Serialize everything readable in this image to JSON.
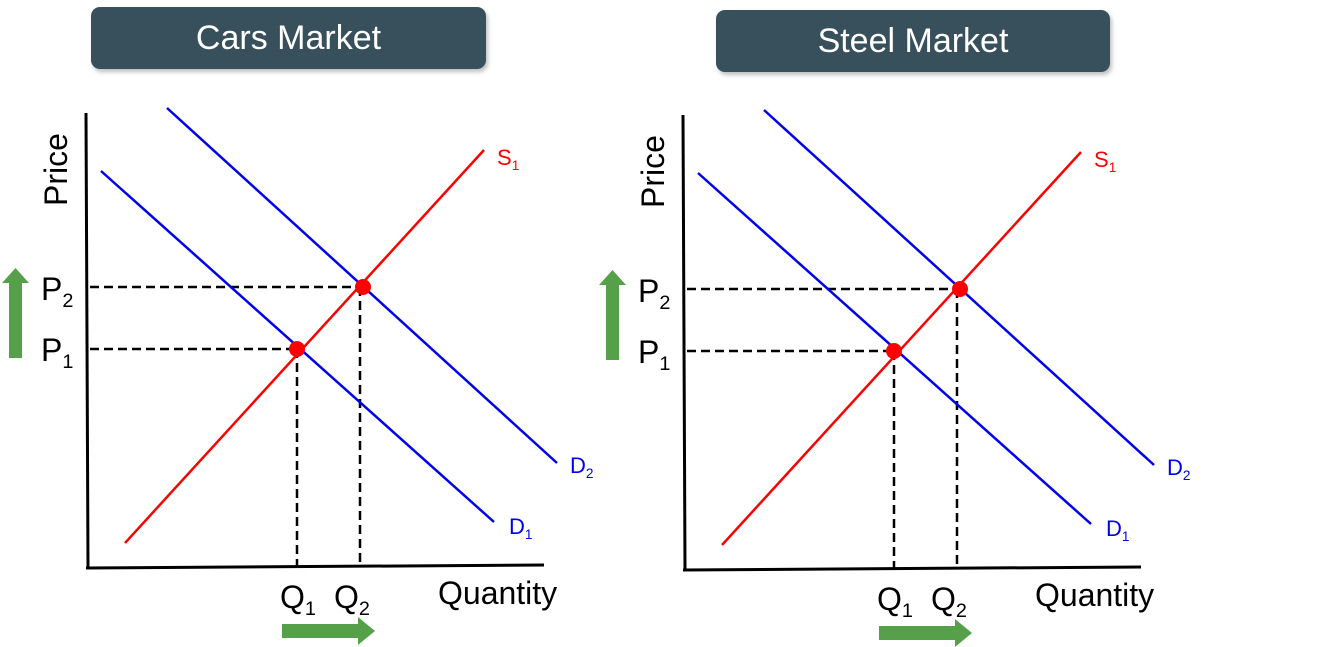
{
  "colors": {
    "title_bg": "#37505c",
    "demand": "#0000ee",
    "supply": "#ff0000",
    "equilibrium": "#ff0000",
    "arrow": "#56a04a",
    "axis": "#000000"
  },
  "panels": [
    {
      "title": "Cars Market",
      "y_label": "Price",
      "x_label": "Quantity",
      "supply_label": "S",
      "supply_sub": "1",
      "demand_labels": [
        {
          "main": "D",
          "sub": "1"
        },
        {
          "main": "D",
          "sub": "2"
        }
      ],
      "price_labels": [
        {
          "main": "P",
          "sub": "1"
        },
        {
          "main": "P",
          "sub": "2"
        }
      ],
      "quantity_labels": [
        {
          "main": "Q",
          "sub": "1"
        },
        {
          "main": "Q",
          "sub": "2"
        }
      ],
      "price_arrow": "up",
      "quantity_arrow": "right"
    },
    {
      "title": "Steel Market",
      "y_label": "Price",
      "x_label": "Quantity",
      "supply_label": "S",
      "supply_sub": "1",
      "demand_labels": [
        {
          "main": "D",
          "sub": "1"
        },
        {
          "main": "D",
          "sub": "2"
        }
      ],
      "price_labels": [
        {
          "main": "P",
          "sub": "1"
        },
        {
          "main": "P",
          "sub": "2"
        }
      ],
      "quantity_labels": [
        {
          "main": "Q",
          "sub": "1"
        },
        {
          "main": "Q",
          "sub": "2"
        }
      ],
      "price_arrow": "up",
      "quantity_arrow": "right"
    }
  ]
}
